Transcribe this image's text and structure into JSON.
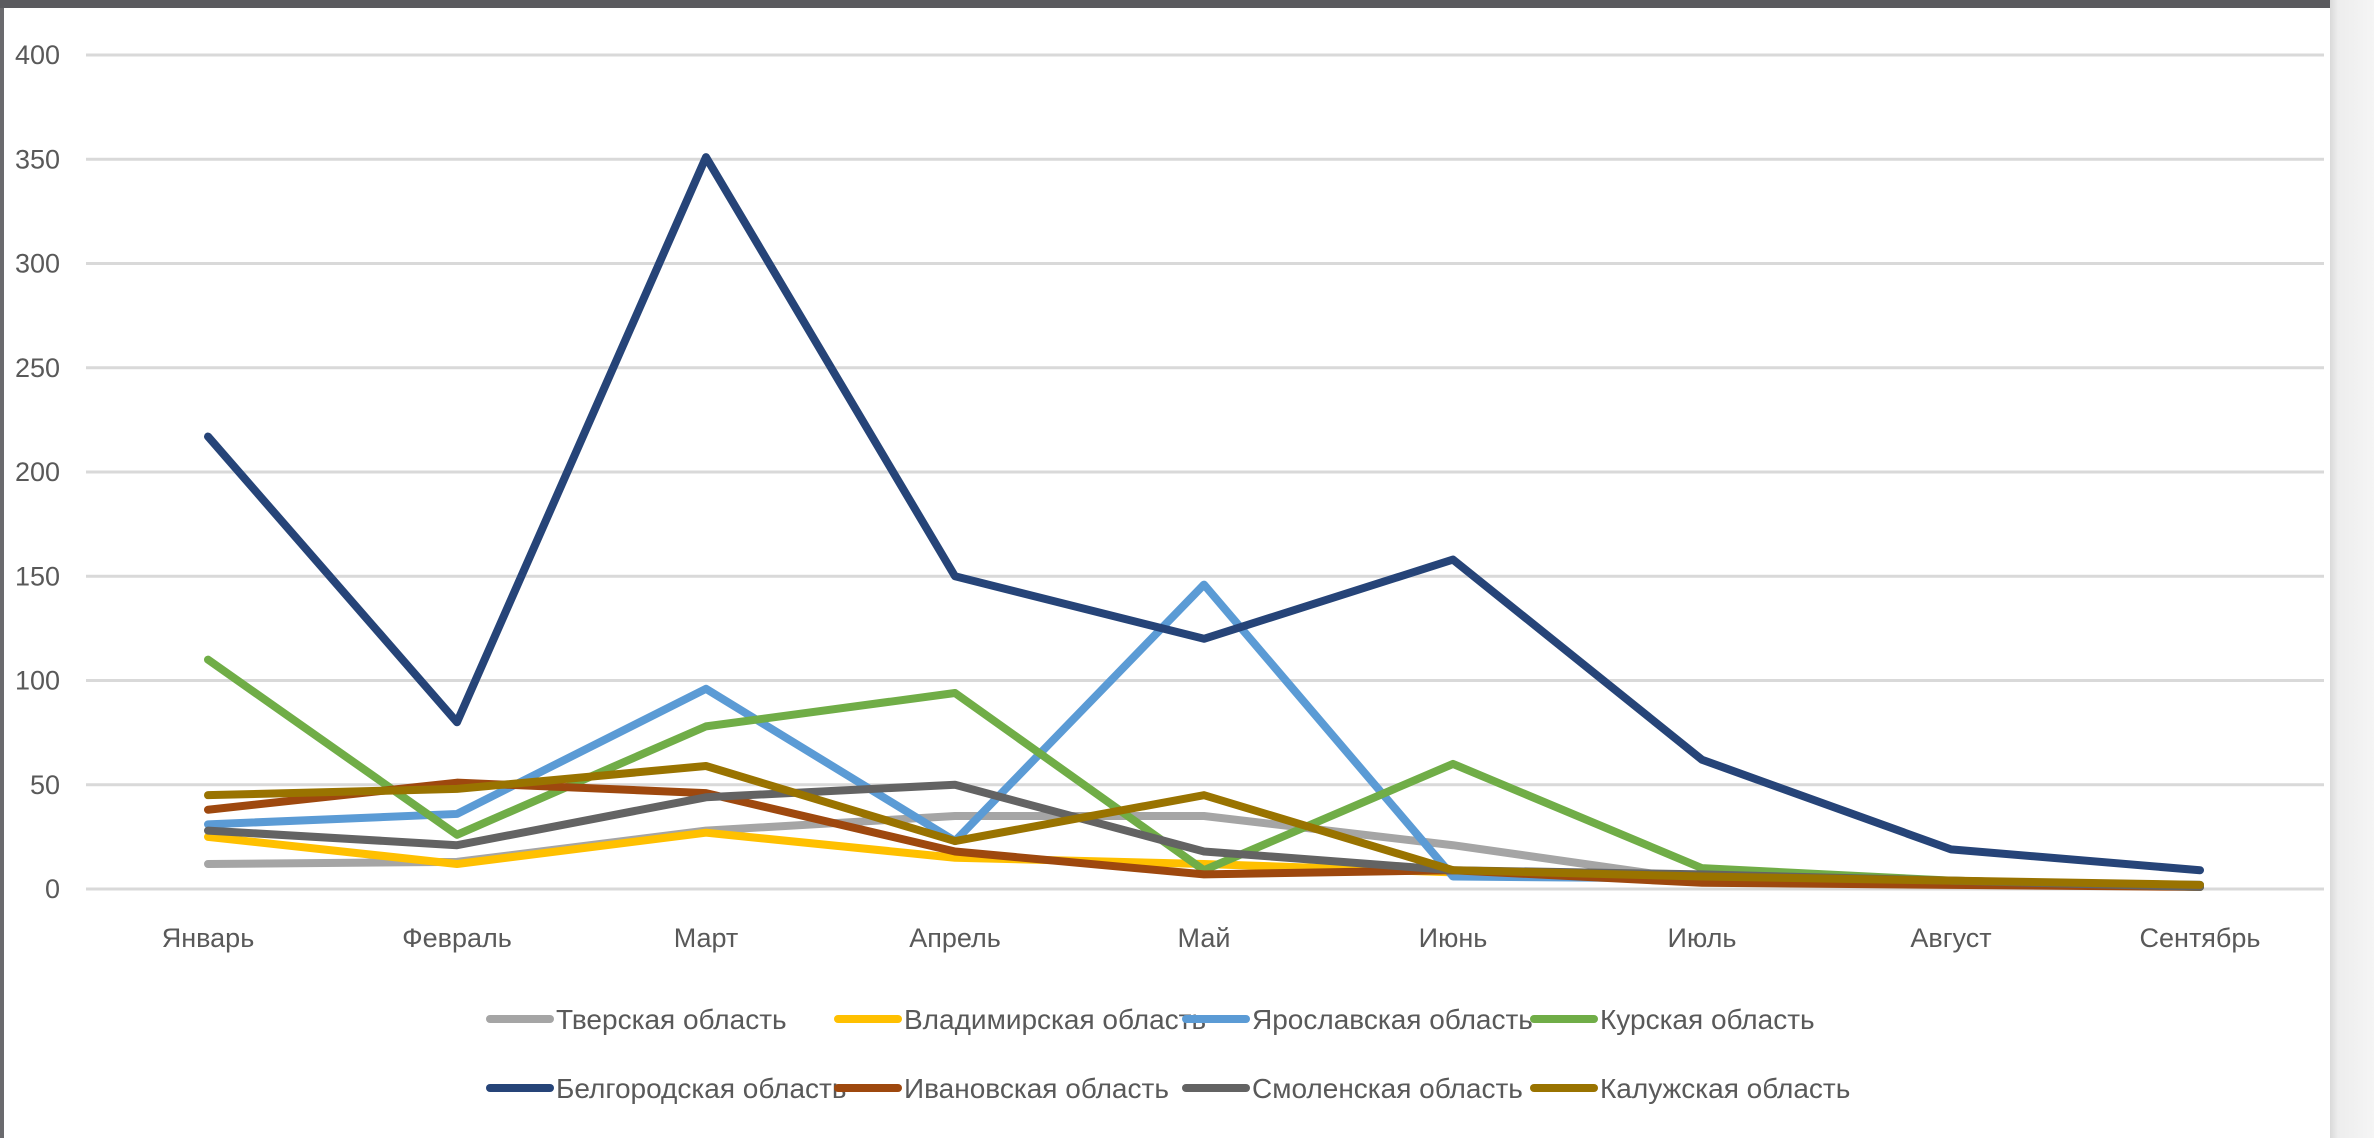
{
  "chart_data": {
    "type": "line",
    "categories": [
      "Январь",
      "Февраль",
      "Март",
      "Апрель",
      "Май",
      "Июнь",
      "Июль",
      "Август",
      "Сентябрь"
    ],
    "ylim": [
      0,
      400
    ],
    "yticks": [
      0,
      50,
      100,
      150,
      200,
      250,
      300,
      350,
      400
    ],
    "grid": true,
    "legend_position": "bottom",
    "series": [
      {
        "name": "Тверская область",
        "color": "#a5a5a5",
        "values": [
          12,
          13,
          28,
          35,
          35,
          21,
          4,
          3,
          2
        ]
      },
      {
        "name": "Владимирская область",
        "color": "#ffc000",
        "values": [
          25,
          12,
          27,
          15,
          12,
          8,
          5,
          3,
          1
        ]
      },
      {
        "name": "Ярославская область",
        "color": "#5b9bd5",
        "values": [
          31,
          36,
          96,
          23,
          146,
          6,
          5,
          3,
          2
        ]
      },
      {
        "name": "Курская область",
        "color": "#70ad47",
        "values": [
          110,
          26,
          78,
          94,
          9,
          60,
          10,
          4,
          1
        ]
      },
      {
        "name": "Белгородская область",
        "color": "#264478",
        "values": [
          217,
          80,
          351,
          150,
          120,
          158,
          62,
          19,
          9
        ]
      },
      {
        "name": "Ивановская область",
        "color": "#9e480e",
        "values": [
          38,
          51,
          46,
          18,
          7,
          9,
          3,
          2,
          1
        ]
      },
      {
        "name": "Смоленская область",
        "color": "#636363",
        "values": [
          28,
          21,
          44,
          50,
          18,
          9,
          7,
          4,
          1
        ]
      },
      {
        "name": "Калужская область",
        "color": "#997300",
        "values": [
          45,
          48,
          59,
          23,
          45,
          9,
          6,
          4,
          2
        ]
      }
    ]
  }
}
